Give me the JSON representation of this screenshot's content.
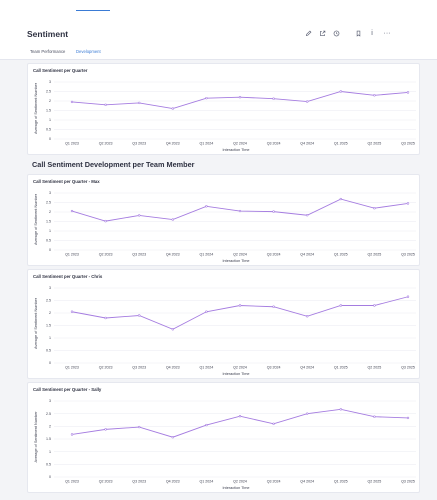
{
  "page": {
    "title": "Sentiment"
  },
  "header_icons": [
    {
      "name": "pencil-icon",
      "glyph": "pencil"
    },
    {
      "name": "share-icon",
      "glyph": "share"
    },
    {
      "name": "history-icon",
      "glyph": "clock"
    },
    {
      "name": "bookmark-icon",
      "glyph": "bookmark"
    },
    {
      "name": "info-icon",
      "glyph": "i"
    },
    {
      "name": "more-icon",
      "glyph": "···"
    }
  ],
  "tabs": [
    {
      "label": "Team Performance",
      "active": false
    },
    {
      "label": "Development",
      "active": true
    }
  ],
  "section": {
    "title": "Call Sentiment Development per Team Member"
  },
  "colors": {
    "line": "#a57ce0",
    "grid": "#e3e5ec",
    "accent": "#3a7bd5"
  },
  "chart_data": [
    {
      "type": "line",
      "title": "Call Sentiment per Quarter",
      "xlabel": "Interaction Time",
      "ylabel": "Average of Sentiment Number",
      "ylim": [
        0,
        3
      ],
      "yticks": [
        "0",
        "0.5",
        "1",
        "1.5",
        "2",
        "2.5",
        "3"
      ],
      "categories": [
        "Q1 2023",
        "Q2 2023",
        "Q3 2023",
        "Q4 2023",
        "Q1 2024",
        "Q2 2024",
        "Q3 2024",
        "Q4 2024",
        "Q1 2025",
        "Q2 2025",
        "Q3 2025"
      ],
      "values": [
        1.95,
        1.8,
        1.9,
        1.6,
        2.15,
        2.2,
        2.12,
        1.97,
        2.5,
        2.3,
        2.45
      ],
      "grid": true
    },
    {
      "type": "line",
      "title": "Call Sentiment per Quarter - Max",
      "xlabel": "Interaction Time",
      "ylabel": "Average of Sentiment Number",
      "ylim": [
        0,
        3
      ],
      "yticks": [
        "0",
        "0.5",
        "1",
        "1.5",
        "2",
        "2.5",
        "3"
      ],
      "categories": [
        "Q1 2023",
        "Q2 2023",
        "Q3 2023",
        "Q4 2023",
        "Q1 2024",
        "Q2 2024",
        "Q3 2024",
        "Q4 2024",
        "Q1 2025",
        "Q2 2025",
        "Q3 2025"
      ],
      "values": [
        2.05,
        1.52,
        1.82,
        1.6,
        2.3,
        2.05,
        2.02,
        1.83,
        2.68,
        2.2,
        2.45
      ],
      "grid": true
    },
    {
      "type": "line",
      "title": "Call Sentiment per Quarter - Chris",
      "xlabel": "Interaction Time",
      "ylabel": "Average of Sentiment Number",
      "ylim": [
        0,
        3
      ],
      "yticks": [
        "0",
        "0.5",
        "1",
        "1.5",
        "2",
        "2.5",
        "3"
      ],
      "categories": [
        "Q1 2023",
        "Q2 2023",
        "Q3 2023",
        "Q4 2023",
        "Q1 2024",
        "Q2 2024",
        "Q3 2024",
        "Q4 2024",
        "Q1 2025",
        "Q2 2025",
        "Q3 2025"
      ],
      "values": [
        2.05,
        1.8,
        1.9,
        1.35,
        2.05,
        2.3,
        2.25,
        1.87,
        2.3,
        2.3,
        2.65
      ],
      "grid": true
    },
    {
      "type": "line",
      "title": "Call Sentiment per Quarter - Sally",
      "xlabel": "Interaction Time",
      "ylabel": "Average of Sentiment Number",
      "ylim": [
        0,
        3
      ],
      "yticks": [
        "0",
        "0.5",
        "1",
        "1.5",
        "2",
        "2.5",
        "3"
      ],
      "categories": [
        "Q1 2023",
        "Q2 2023",
        "Q3 2023",
        "Q4 2023",
        "Q1 2024",
        "Q2 2024",
        "Q3 2024",
        "Q4 2024",
        "Q1 2025",
        "Q2 2025",
        "Q3 2025"
      ],
      "values": [
        1.68,
        1.88,
        1.97,
        1.57,
        2.05,
        2.4,
        2.1,
        2.5,
        2.67,
        2.38,
        2.33
      ],
      "grid": true
    }
  ]
}
